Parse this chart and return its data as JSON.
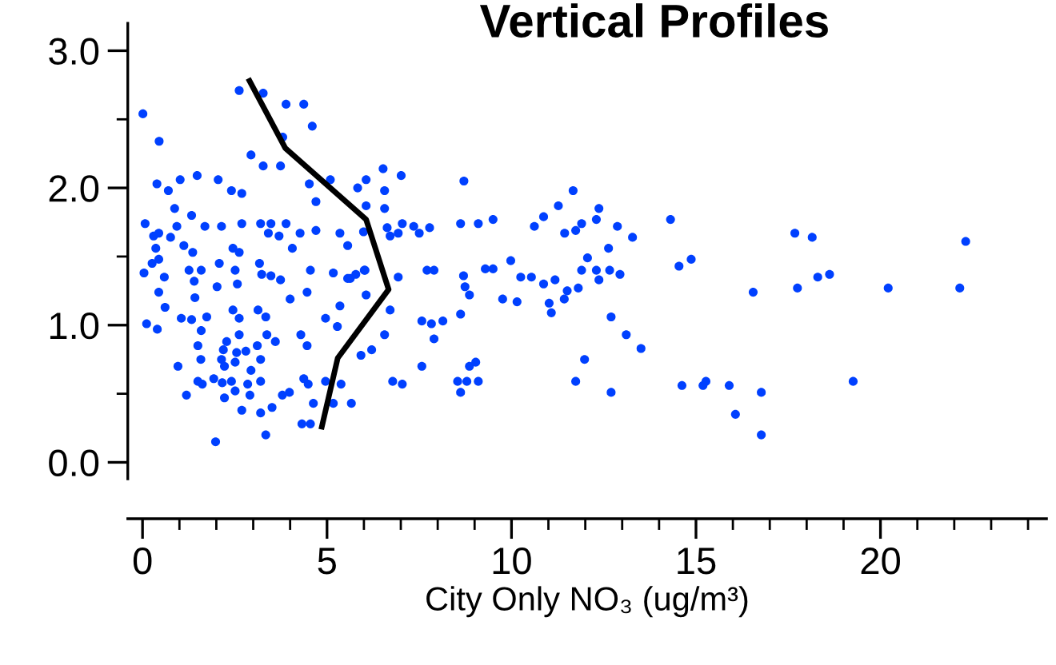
{
  "chart_data": {
    "type": "scatter",
    "title": "Vertical Profiles",
    "xlabel": "City Only NO₃ (ug/m³)",
    "xlim": [
      -0.4,
      24.5
    ],
    "ylim": [
      -0.12,
      3.2
    ],
    "xticks": [
      0,
      5,
      10,
      15,
      20
    ],
    "yticks": [
      {
        "value": 0,
        "label": "0.0"
      },
      {
        "value": 1,
        "label": "1.0"
      },
      {
        "value": 2,
        "label": "2.0"
      },
      {
        "value": 3,
        "label": "3.0"
      }
    ],
    "grid": false,
    "legend": false,
    "series": [
      {
        "color": "#0040ff",
        "marker": "circle",
        "x": [
          0.01,
          0.45,
          2.62,
          3.27,
          3.89,
          4.37,
          4.6,
          3.8,
          2.94,
          3.27,
          3.74,
          0.39,
          1.02,
          1.48,
          2.05,
          2.41,
          2.69,
          0.7,
          0.87,
          1.33,
          0.07,
          0.3,
          0.44,
          0.93,
          1.69,
          2.14,
          2.69,
          3.2,
          3.48,
          3.89,
          3.41,
          3.7,
          4.27,
          4.7,
          5.09,
          4.7,
          4.52,
          5.35,
          5.56,
          0.76,
          1.12,
          1.36,
          0.36,
          0.26,
          0.44,
          0.04,
          0.59,
          0.44,
          1.26,
          1.4,
          1.59,
          1.42,
          2.08,
          2.02,
          2.45,
          2.62,
          2.51,
          2.57,
          3.17,
          3.23,
          3.48,
          3.74,
          4.06,
          4.55,
          4.46,
          5.17,
          5.56,
          5.78,
          6.03,
          4.0,
          0.61,
          1.05,
          0.11,
          0.4,
          1.74,
          1.33,
          2.45,
          2.62,
          3.13,
          3.34,
          1.59,
          2.28,
          2.62,
          3.37,
          3.6,
          3.11,
          1.5,
          2.19,
          2.55,
          2.8,
          3.2,
          1.58,
          2.14,
          2.51,
          0.96,
          2.22,
          2.94,
          4.29,
          4.46,
          4.96,
          5.28,
          5.35,
          5.92,
          6.21,
          6.56,
          1.5,
          1.93,
          2.16,
          2.41,
          2.85,
          3.2,
          1.62,
          2.51,
          2.91,
          1.19,
          2.22,
          3.79,
          3.98,
          4.37,
          4.49,
          4.96,
          5.38,
          4.63,
          5.17,
          5.66,
          6.78,
          7.04,
          2.69,
          3.2,
          3.51,
          4.32,
          4.55,
          3.34,
          1.98,
          6.06,
          6.52,
          7.01,
          5.83,
          6.56,
          6.06,
          6.56,
          6.63,
          7.04,
          5.99,
          6.71,
          6.93,
          6.01,
          5.63,
          6.06,
          6.71,
          6.93,
          8.71,
          8.62,
          9.1,
          9.5,
          7.35,
          7.5,
          7.78,
          10.62,
          10.87,
          11.27,
          11.67,
          11.44,
          11.74,
          11.9,
          12.3,
          12.37,
          12.87,
          13.28,
          14.31,
          17.68,
          18.15,
          22.31,
          7.71,
          7.9,
          8.7,
          8.74,
          8.86,
          8.62,
          9.29,
          9.5,
          9.98,
          9.76,
          10.15,
          10.25,
          10.54,
          10.87,
          11.18,
          11.02,
          11.08,
          11.43,
          11.51,
          11.81,
          12.06,
          11.9,
          12.3,
          12.37,
          12.63,
          12.66,
          12.94,
          12.7,
          13.11,
          13.51,
          14.54,
          14.87,
          16.55,
          17.75,
          18.3,
          18.62,
          20.21,
          22.15,
          7.57,
          7.83,
          8.14,
          7.9,
          7.57,
          8.54,
          8.79,
          9.1,
          8.62,
          8.86,
          9.03,
          11.98,
          11.74,
          12.7,
          14.62,
          15.19,
          15.27,
          15.9,
          16.77,
          16.07,
          16.77,
          19.26
        ],
        "values": [
          2.54,
          2.34,
          2.71,
          2.69,
          2.61,
          2.61,
          2.45,
          2.37,
          2.24,
          2.16,
          2.16,
          2.03,
          2.06,
          2.09,
          2.06,
          1.98,
          1.96,
          1.98,
          1.85,
          1.8,
          1.74,
          1.65,
          1.67,
          1.72,
          1.72,
          1.72,
          1.74,
          1.74,
          1.74,
          1.74,
          1.67,
          1.65,
          1.67,
          1.69,
          2.06,
          1.9,
          2.03,
          1.67,
          1.58,
          1.64,
          1.58,
          1.53,
          1.56,
          1.45,
          1.48,
          1.38,
          1.35,
          1.24,
          1.4,
          1.32,
          1.4,
          1.2,
          1.45,
          1.28,
          1.56,
          1.53,
          1.4,
          1.3,
          1.45,
          1.37,
          1.36,
          1.33,
          1.56,
          1.4,
          1.24,
          1.38,
          1.34,
          1.37,
          1.4,
          1.19,
          1.13,
          1.05,
          1.01,
          0.97,
          1.06,
          1.04,
          1.11,
          1.05,
          1.11,
          1.06,
          0.96,
          0.88,
          0.93,
          0.93,
          0.88,
          0.85,
          0.85,
          0.82,
          0.8,
          0.81,
          0.75,
          0.75,
          0.75,
          0.73,
          0.7,
          0.7,
          0.67,
          0.93,
          0.85,
          1.05,
          0.99,
          1.14,
          0.78,
          0.82,
          0.93,
          0.59,
          0.61,
          0.58,
          0.59,
          0.57,
          0.59,
          0.57,
          0.52,
          0.49,
          0.49,
          0.47,
          0.49,
          0.51,
          0.61,
          0.57,
          0.59,
          0.57,
          0.43,
          0.43,
          0.43,
          0.59,
          0.57,
          0.38,
          0.36,
          0.4,
          0.28,
          0.28,
          0.2,
          0.15,
          2.06,
          2.14,
          2.09,
          2.0,
          1.98,
          1.87,
          1.85,
          1.71,
          1.74,
          1.68,
          1.65,
          1.67,
          1.4,
          1.34,
          1.22,
          1.11,
          1.35,
          2.05,
          1.74,
          1.74,
          1.77,
          1.72,
          1.67,
          1.71,
          1.72,
          1.79,
          1.87,
          1.98,
          1.67,
          1.69,
          1.74,
          1.77,
          1.85,
          1.72,
          1.64,
          1.77,
          1.67,
          1.64,
          1.61,
          1.4,
          1.4,
          1.36,
          1.28,
          1.22,
          1.08,
          1.41,
          1.41,
          1.47,
          1.19,
          1.17,
          1.35,
          1.35,
          1.3,
          1.33,
          1.16,
          1.09,
          1.19,
          1.25,
          1.27,
          1.49,
          1.4,
          1.4,
          1.33,
          1.56,
          1.4,
          1.37,
          1.06,
          0.93,
          0.83,
          1.43,
          1.48,
          1.24,
          1.27,
          1.35,
          1.37,
          1.27,
          1.27,
          1.03,
          1.01,
          1.03,
          0.9,
          0.7,
          0.59,
          0.59,
          0.59,
          0.51,
          0.7,
          0.73,
          0.75,
          0.59,
          0.51,
          0.56,
          0.56,
          0.59,
          0.56,
          0.51,
          0.35,
          0.2,
          0.59
        ]
      },
      {
        "type": "line",
        "color": "#000000",
        "marker": "none",
        "line_style": "solid",
        "x": [
          2.9,
          3.87,
          6.06,
          6.67,
          5.29,
          4.86
        ],
        "values": [
          2.78,
          2.29,
          1.77,
          1.26,
          0.76,
          0.26
        ]
      }
    ]
  }
}
